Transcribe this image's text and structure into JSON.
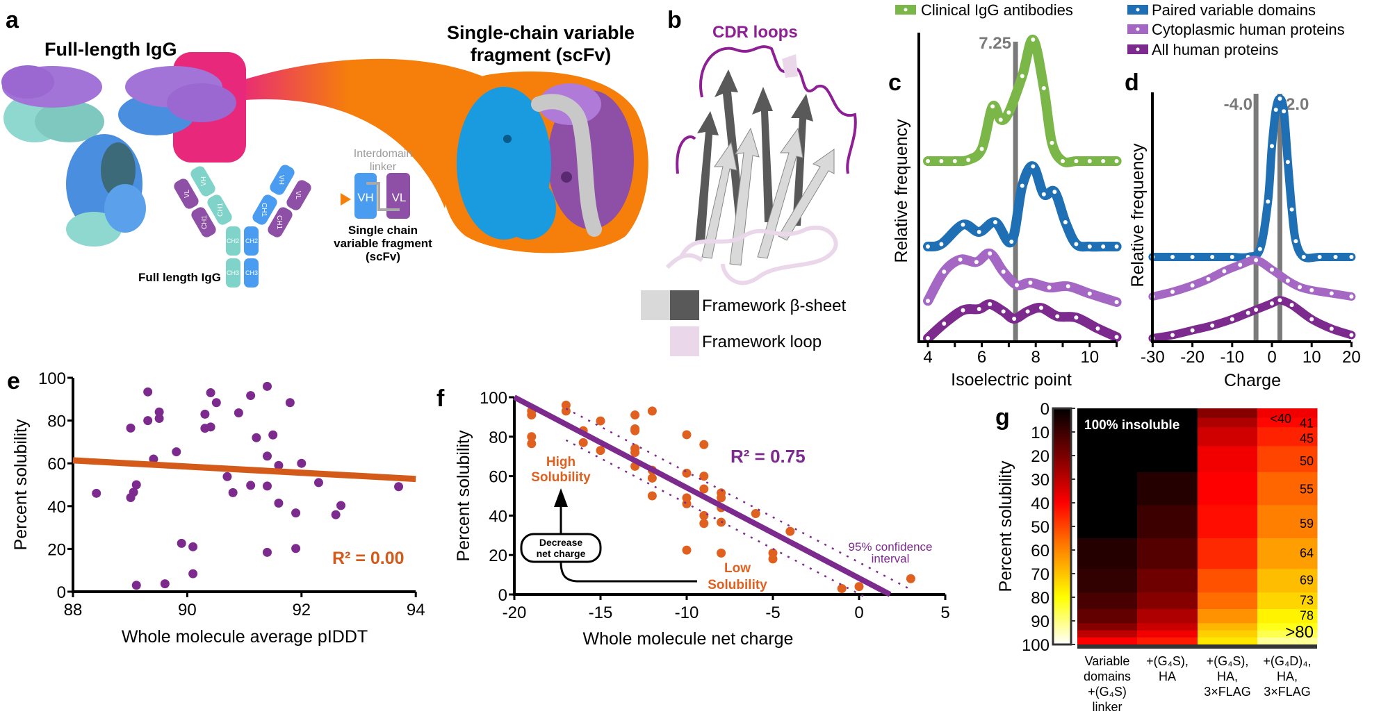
{
  "panel_labels": {
    "a": "a",
    "b": "b",
    "c": "c",
    "d": "d",
    "e": "e",
    "f": "f",
    "g": "g"
  },
  "panel_a": {
    "full_length_igg_title": "Full-length IgG",
    "scfv_title_line1": "Single-chain variable",
    "scfv_title_line2": "fragment (scFv)",
    "schematic": {
      "vl": "VL",
      "vh": "VH",
      "ch1": "CH1",
      "ch2": "CH2",
      "ch3": "CH3",
      "igg_label": "Full length IgG",
      "linker_line1": "Interdomain",
      "linker_line2": "linker",
      "scfv_vh": "VH",
      "scfv_vl": "VL",
      "scfv_label_line1": "Single chain",
      "scfv_label_line2": "variable fragment",
      "scfv_label_line3": "(scFv)"
    },
    "colors": {
      "heavy_1": "#7fd3c8",
      "heavy_2": "#4a9cf0",
      "light": "#8e4fa6",
      "highlight": "#e8287a",
      "zoom": "#f57f0a",
      "linker": "#a9a9a9"
    }
  },
  "panel_b": {
    "cdr_label": "CDR loops",
    "legend": [
      {
        "label": "Framework β-sheet",
        "colors": [
          "#d9d9d9",
          "#595959"
        ]
      },
      {
        "label": "Framework loop",
        "colors": [
          "#ead8ea"
        ]
      }
    ],
    "cdr_color": "#8e1f95"
  },
  "legend": [
    {
      "label": "Clinical IgG antibodies",
      "color": "#7ab648"
    },
    {
      "label": "Paired variable domains",
      "color": "#1f6fb5"
    },
    {
      "label": "Cytoplasmic human proteins",
      "color": "#a468c4"
    },
    {
      "label": "All human proteins",
      "color": "#7d2a8e"
    }
  ],
  "chart_data": [
    {
      "panel": "c",
      "type": "line",
      "xlabel": "Isoelectric point",
      "ylabel": "Relative frequency",
      "xlim": [
        3.7,
        11
      ],
      "x_ticks": [
        4,
        5,
        6,
        7,
        8,
        9,
        10,
        11
      ],
      "x_tick_labels": [
        "4",
        "6",
        "8",
        "10"
      ],
      "x_tick_label_values": [
        4,
        6,
        8,
        10
      ],
      "reference_line": {
        "value": 7.25,
        "label": "7.25"
      },
      "series": [
        {
          "name": "Clinical IgG antibodies",
          "x": [
            4,
            4.5,
            5,
            5.5,
            6.0,
            6.4,
            6.7,
            7.0,
            7.5,
            7.9,
            8.3,
            8.6,
            9.0,
            9.5,
            10,
            10.5,
            11
          ],
          "y": [
            0,
            0,
            0,
            0.01,
            0.1,
            0.45,
            0.34,
            0.4,
            0.7,
            1.0,
            0.6,
            0.15,
            0,
            0,
            0,
            0,
            0
          ]
        },
        {
          "name": "Paired variable domains",
          "x": [
            4,
            4.5,
            5.3,
            5.9,
            6.5,
            7.1,
            7.5,
            7.9,
            8.3,
            8.7,
            9.1,
            9.5,
            10,
            10.5,
            11
          ],
          "y": [
            0,
            0.02,
            0.18,
            0.12,
            0.2,
            0.04,
            0.5,
            0.66,
            0.43,
            0.45,
            0.2,
            0.02,
            0,
            0,
            0
          ]
        },
        {
          "name": "Cytoplasmic human proteins",
          "x": [
            4,
            4.6,
            5.2,
            5.8,
            6.3,
            6.8,
            7.3,
            7.8,
            8.5,
            9.2,
            10,
            11
          ],
          "y": [
            0.01,
            0.25,
            0.35,
            0.33,
            0.4,
            0.25,
            0.14,
            0.16,
            0.12,
            0.13,
            0.07,
            0
          ]
        },
        {
          "name": "All human proteins",
          "x": [
            4,
            4.6,
            5.3,
            5.9,
            6.3,
            6.8,
            7.2,
            7.7,
            8.2,
            8.8,
            9.5,
            10.3,
            11
          ],
          "y": [
            0,
            0.12,
            0.23,
            0.24,
            0.28,
            0.22,
            0.16,
            0.22,
            0.25,
            0.18,
            0.17,
            0.08,
            0.01
          ]
        }
      ]
    },
    {
      "panel": "d",
      "type": "line",
      "xlabel": "Charge",
      "ylabel": "Relative frequency",
      "xlim": [
        -30,
        20
      ],
      "x_tick_labels": [
        "-30",
        "-20",
        "-10",
        "0",
        "10",
        "20"
      ],
      "x_tick_label_values": [
        -30,
        -20,
        -10,
        0,
        10,
        20
      ],
      "reference_lines": [
        {
          "value": -4.0,
          "label": "-4.0"
        },
        {
          "value": 2.0,
          "label": "2.0"
        }
      ],
      "series": [
        {
          "name": "Paired variable domains",
          "x": [
            -30,
            -25,
            -20,
            -15,
            -10,
            -6,
            -3,
            -1,
            0,
            1,
            2,
            3,
            4,
            5,
            6,
            8,
            12,
            16,
            20
          ],
          "y": [
            0,
            0,
            0,
            0,
            0,
            0,
            0.05,
            0.35,
            0.7,
            0.93,
            1.0,
            0.92,
            0.6,
            0.3,
            0.1,
            0,
            0,
            0,
            0
          ]
        },
        {
          "name": "Cytoplasmic human proteins",
          "x": [
            -30,
            -25,
            -20,
            -16,
            -12,
            -8,
            -4,
            0,
            4,
            7,
            10,
            15,
            20
          ],
          "y": [
            0,
            0.03,
            0.07,
            0.11,
            0.16,
            0.2,
            0.23,
            0.17,
            0.1,
            0.06,
            0.04,
            0.02,
            0
          ]
        },
        {
          "name": "All human proteins",
          "x": [
            -30,
            -25,
            -20,
            -15,
            -10,
            -6,
            -4,
            0,
            2,
            5,
            10,
            15,
            20
          ],
          "y": [
            0,
            0.02,
            0.05,
            0.08,
            0.12,
            0.16,
            0.18,
            0.22,
            0.24,
            0.21,
            0.12,
            0.06,
            0.02
          ]
        }
      ]
    },
    {
      "panel": "e",
      "type": "scatter",
      "xlabel": "Whole molecule average pIDDT",
      "ylabel": "Percent solubility",
      "xlim": [
        88,
        94
      ],
      "ylim": [
        0,
        100
      ],
      "x_tick_labels": [
        "88",
        "90",
        "92",
        "94"
      ],
      "x_tick_label_values": [
        88,
        90,
        92,
        94
      ],
      "y_tick_labels": [
        "0",
        "20",
        "40",
        "60",
        "80",
        "100"
      ],
      "y_tick_label_values": [
        0,
        20,
        40,
        60,
        80,
        100
      ],
      "annotation": "R² = 0.00",
      "fit_line": {
        "x": [
          88,
          94
        ],
        "y": [
          61.4,
          52.7
        ]
      },
      "points": [
        [
          88.41,
          46
        ],
        [
          89.01,
          76.5
        ],
        [
          89.01,
          44
        ],
        [
          89.06,
          46.5
        ],
        [
          89.11,
          50
        ],
        [
          89.11,
          3
        ],
        [
          89.31,
          93.4
        ],
        [
          89.31,
          80
        ],
        [
          89.51,
          84
        ],
        [
          89.51,
          81
        ],
        [
          89.41,
          62
        ],
        [
          89.61,
          3.7
        ],
        [
          89.81,
          65.4
        ],
        [
          89.9,
          22.6
        ],
        [
          90.1,
          21
        ],
        [
          90.1,
          8.4
        ],
        [
          90.31,
          83
        ],
        [
          90.31,
          76.4
        ],
        [
          90.41,
          77
        ],
        [
          90.41,
          93
        ],
        [
          90.51,
          88.4
        ],
        [
          90.7,
          53.8
        ],
        [
          90.8,
          46.3
        ],
        [
          90.9,
          83.6
        ],
        [
          91.11,
          91.7
        ],
        [
          91.11,
          49.7
        ],
        [
          91.21,
          72
        ],
        [
          91.4,
          96
        ],
        [
          91.4,
          63.4
        ],
        [
          91.4,
          49.4
        ],
        [
          91.4,
          18.4
        ],
        [
          91.5,
          73.3
        ],
        [
          91.6,
          59
        ],
        [
          91.6,
          41.4
        ],
        [
          91.8,
          88.4
        ],
        [
          91.9,
          36.8
        ],
        [
          91.9,
          20.2
        ],
        [
          92.0,
          60
        ],
        [
          92.3,
          51
        ],
        [
          92.6,
          36
        ],
        [
          92.69,
          40.3
        ],
        [
          93.7,
          49.1
        ]
      ]
    },
    {
      "panel": "f",
      "type": "scatter",
      "xlabel": "Whole molecule net charge",
      "ylabel": "Percent solubility",
      "xlim": [
        -20,
        5
      ],
      "ylim": [
        0,
        100
      ],
      "x_tick_labels": [
        "-20",
        "-15",
        "-10",
        "-5",
        "0",
        "5"
      ],
      "x_tick_label_values": [
        -20,
        -15,
        -10,
        -5,
        0,
        5
      ],
      "y_tick_labels": [
        "0",
        "20",
        "40",
        "60",
        "80",
        "100"
      ],
      "y_tick_label_values": [
        0,
        20,
        40,
        60,
        80,
        100
      ],
      "annotation": "R² = 0.75",
      "confidence_label_line1": "95% confidence",
      "confidence_label_line2": "interval",
      "high_label_line1": "High",
      "high_label_line2": "Solubility",
      "low_label_line1": "Low",
      "low_label_line2": "Solubility",
      "callout_line1": "Decrease",
      "callout_line2": "net charge",
      "fit_line": {
        "x": [
          -20,
          1.8
        ],
        "y": [
          100,
          0
        ]
      },
      "confidence_offset": 8,
      "points": [
        [
          -19,
          93
        ],
        [
          -19,
          91
        ],
        [
          -19,
          80
        ],
        [
          -19,
          76.5
        ],
        [
          -17,
          96
        ],
        [
          -17,
          93
        ],
        [
          -16,
          83
        ],
        [
          -16,
          77
        ],
        [
          -15,
          88
        ],
        [
          -15,
          73
        ],
        [
          -13,
          91
        ],
        [
          -13,
          84
        ],
        [
          -13,
          83
        ],
        [
          -13,
          74
        ],
        [
          -13,
          72
        ],
        [
          -13,
          65
        ],
        [
          -12,
          93
        ],
        [
          -12,
          63
        ],
        [
          -12,
          59
        ],
        [
          -12,
          50
        ],
        [
          -10,
          81
        ],
        [
          -10,
          61.5
        ],
        [
          -10,
          49
        ],
        [
          -10,
          46
        ],
        [
          -10,
          22.5
        ],
        [
          -9,
          76
        ],
        [
          -9,
          60
        ],
        [
          -9,
          53.5
        ],
        [
          -9,
          40
        ],
        [
          -9,
          36
        ],
        [
          -8,
          51.5
        ],
        [
          -8,
          49
        ],
        [
          -8,
          44
        ],
        [
          -8,
          36.6
        ],
        [
          -8,
          21
        ],
        [
          -6,
          41
        ],
        [
          -4,
          32
        ],
        [
          -5,
          21
        ],
        [
          -5,
          18
        ],
        [
          -1,
          3
        ],
        [
          0,
          4
        ],
        [
          3,
          8
        ]
      ]
    },
    {
      "panel": "g",
      "type": "heatmap",
      "ylabel": "Percent solubility",
      "y_tick_labels": [
        "0",
        "10",
        "20",
        "30",
        "40",
        "50",
        "60",
        "70",
        "80",
        "90",
        "100"
      ],
      "y_tick_label_values": [
        0,
        10,
        20,
        30,
        40,
        50,
        60,
        70,
        80,
        90,
        100
      ],
      "annotation": "100% insoluble",
      "colormap": [
        "#000000",
        "#7a0000",
        "#ff0000",
        "#ff7a00",
        "#ffff00",
        "#ffffff"
      ],
      "columns": [
        {
          "label_lines": [
            "Variable",
            "domains",
            "+(G₄S)",
            "linker"
          ],
          "row_edges": [
            0,
            55,
            68,
            78,
            85,
            91,
            94,
            97,
            100
          ],
          "values": [
            0,
            6,
            8,
            12,
            16,
            22,
            30,
            40
          ]
        },
        {
          "label_lines": [
            "+(G₄S),",
            "HA"
          ],
          "row_edges": [
            0,
            27,
            41,
            55,
            68,
            78,
            85,
            91,
            94,
            97,
            100
          ],
          "values": [
            0,
            6,
            10,
            14,
            18,
            22,
            28,
            32,
            38,
            44
          ]
        },
        {
          "label_lines": [
            "+(G₄S),",
            "HA,",
            "3×FLAG"
          ],
          "row_edges": [
            0,
            4,
            8,
            16,
            27,
            41,
            55,
            68,
            78,
            85,
            91,
            94,
            97,
            100
          ],
          "values": [
            22,
            28,
            33,
            38,
            40,
            42,
            46,
            52,
            56,
            62,
            68,
            72,
            76
          ]
        },
        {
          "label_lines": [
            "+(G₄D)₄,",
            "HA,",
            "3×FLAG"
          ],
          "row_edges": [
            0,
            4,
            8,
            16,
            27,
            41,
            55,
            68,
            78,
            85,
            91,
            94,
            97,
            100
          ],
          "values": [
            38,
            41,
            45,
            50,
            55,
            59,
            64,
            69,
            73,
            78,
            82,
            86,
            92
          ]
        }
      ],
      "row_value_labels": [
        {
          "text": "<40",
          "at": 2
        },
        {
          "text": "41",
          "at": 6
        },
        {
          "text": "45",
          "at": 12.5
        },
        {
          "text": "50",
          "at": 22
        },
        {
          "text": "55",
          "at": 34
        },
        {
          "text": "59",
          "at": 48.5
        },
        {
          "text": "64",
          "at": 61
        },
        {
          "text": "69",
          "at": 72.5
        },
        {
          "text": "73",
          "at": 81
        },
        {
          "text": "78",
          "at": 87.5
        },
        {
          "text": ">80",
          "at": 95
        }
      ]
    }
  ]
}
